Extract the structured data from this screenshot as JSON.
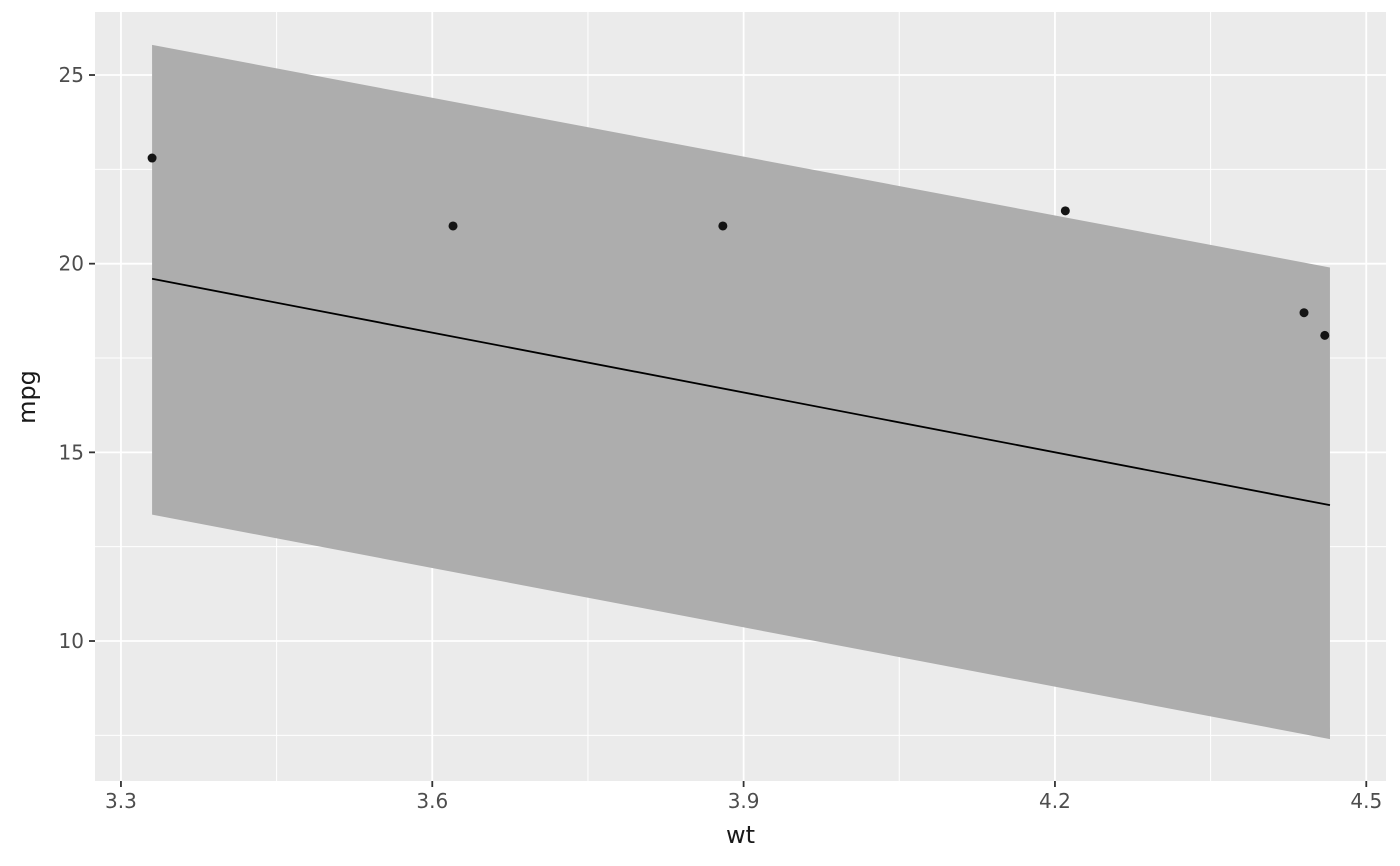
{
  "style": {
    "figure_background": "#FFFFFF",
    "panel_background": "#EBEBEB",
    "grid_color": "#FFFFFF",
    "tick_color": "#333333",
    "tick_label_color": "#4D4D4D",
    "axis_title_color": "#1A1A1A",
    "point_color": "#141414",
    "line_color": "#000000",
    "ribbon_color": "#ADADAD"
  },
  "chart_data": {
    "type": "scatter",
    "title": "",
    "xlabel": "wt",
    "ylabel": "mpg",
    "xlim": [
      3.275,
      4.519
    ],
    "ylim": [
      6.29,
      26.67
    ],
    "grid": true,
    "legend": "none",
    "x_ticks": [
      {
        "value": 3.3,
        "label": "3.3"
      },
      {
        "value": 3.6,
        "label": "3.6"
      },
      {
        "value": 3.9,
        "label": "3.9"
      },
      {
        "value": 4.2,
        "label": "4.2"
      },
      {
        "value": 4.5,
        "label": "4.5"
      }
    ],
    "y_ticks": [
      {
        "value": 10,
        "label": "10"
      },
      {
        "value": 15,
        "label": "15"
      },
      {
        "value": 20,
        "label": "20"
      },
      {
        "value": 25,
        "label": "25"
      }
    ],
    "x_minor_ticks": [
      3.45,
      3.75,
      4.05,
      4.35
    ],
    "y_minor_ticks": [
      7.5,
      12.5,
      17.5,
      22.5
    ],
    "points": [
      {
        "wt": 3.33,
        "mpg": 22.8
      },
      {
        "wt": 3.62,
        "mpg": 21.0
      },
      {
        "wt": 3.88,
        "mpg": 21.0
      },
      {
        "wt": 4.21,
        "mpg": 21.4
      },
      {
        "wt": 4.44,
        "mpg": 18.7
      },
      {
        "wt": 4.46,
        "mpg": 18.1
      }
    ],
    "regression_line": {
      "x1": 3.33,
      "y1": 19.6,
      "x2": 4.465,
      "y2": 13.6
    },
    "confidence_ribbon": {
      "x1": 3.33,
      "x2": 4.465,
      "upper1": 25.8,
      "upper2": 19.9,
      "lower1": 13.35,
      "lower2": 7.4
    }
  }
}
